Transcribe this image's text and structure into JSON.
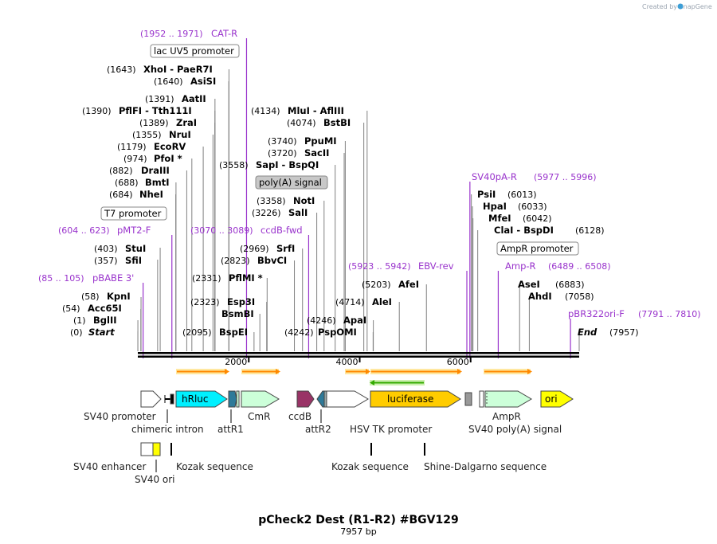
{
  "branding": "Created by SnapGene",
  "title": "pCheck2 Dest (R1-R2)   #BGV129",
  "subtitle": "7957 bp",
  "axis_ticks": [
    {
      "bp": 2000,
      "label": "2000"
    },
    {
      "bp": 4000,
      "label": "4000"
    },
    {
      "bp": 6000,
      "label": "6000"
    }
  ],
  "sites": [
    {
      "pos": "(0)",
      "name": "Start",
      "italic": true,
      "bp": 0
    },
    {
      "pos": "(1)",
      "name": "BglII",
      "bp": 1
    },
    {
      "pos": "(54)",
      "name": "Acc65I",
      "bp": 54
    },
    {
      "pos": "(58)",
      "name": "KpnI",
      "bp": 58
    },
    {
      "pos": "(357)",
      "name": "SfiI",
      "bp": 357
    },
    {
      "pos": "(403)",
      "name": "StuI",
      "bp": 403
    },
    {
      "pos": "(684)",
      "name": "NheI",
      "bp": 684
    },
    {
      "pos": "(688)",
      "name": "BmtI",
      "bp": 688
    },
    {
      "pos": "(882)",
      "name": "DraIII",
      "bp": 882
    },
    {
      "pos": "(974)",
      "name": "PfoI *",
      "bp": 974
    },
    {
      "pos": "(1179)",
      "name": "EcoRV",
      "bp": 1179
    },
    {
      "pos": "(1355)",
      "name": "NruI",
      "bp": 1355
    },
    {
      "pos": "(1389)",
      "name": "ZraI",
      "bp": 1389
    },
    {
      "pos": "(1390)",
      "name": "PflFI  - Tth111I",
      "bp": 1390
    },
    {
      "pos": "(1391)",
      "name": "AatII",
      "bp": 1391
    },
    {
      "pos": "(1640)",
      "name": "AsiSI",
      "bp": 1640
    },
    {
      "pos": "(1643)",
      "name": "XhoI  - PaeR7I",
      "bp": 1643
    },
    {
      "pos": "(2095)",
      "name": "BspEI",
      "bp": 2095
    },
    {
      "pos": "",
      "name": "BsmBI",
      "bp": 2200
    },
    {
      "pos": "(2323)",
      "name": "Esp3I",
      "bp": 2323
    },
    {
      "pos": "(2331)",
      "name": "PflMI *",
      "bp": 2331
    },
    {
      "pos": "(2823)",
      "name": "BbvCI",
      "bp": 2823
    },
    {
      "pos": "(2969)",
      "name": "SrfI",
      "bp": 2969
    },
    {
      "pos": "(3226)",
      "name": "SalI",
      "bp": 3226
    },
    {
      "pos": "(3358)",
      "name": "NotI",
      "bp": 3358
    },
    {
      "pos": "(3558)",
      "name": "SapI  - BspQI",
      "bp": 3558
    },
    {
      "pos": "(3720)",
      "name": "SacII",
      "bp": 3720
    },
    {
      "pos": "(3740)",
      "name": "PpuMI",
      "bp": 3740
    },
    {
      "pos": "(4074)",
      "name": "BstBI",
      "bp": 4074
    },
    {
      "pos": "(4134)",
      "name": "MluI  - AflIII",
      "bp": 4134
    },
    {
      "pos": "(4242)",
      "name": "PspOMI",
      "bp": 4242
    },
    {
      "pos": "(4246)",
      "name": "ApaI",
      "bp": 4246
    },
    {
      "pos": "(4714)",
      "name": "AleI",
      "bp": 4714
    },
    {
      "pos": "(5203)",
      "name": "AfeI",
      "bp": 5203
    },
    {
      "pos": "(6013)",
      "name": "PsiI",
      "bp": 6013
    },
    {
      "pos": "(6033)",
      "name": "HpaI",
      "bp": 6033
    },
    {
      "pos": "(6042)",
      "name": "MfeI",
      "bp": 6042
    },
    {
      "pos": "(6128)",
      "name": "ClaI  - BspDI",
      "bp": 6128
    },
    {
      "pos": "(6883)",
      "name": "AseI",
      "bp": 6883
    },
    {
      "pos": "(7058)",
      "name": "AhdI",
      "bp": 7058
    },
    {
      "pos": "(7957)",
      "name": "End",
      "italic": true,
      "bp": 7957
    }
  ],
  "primers": [
    {
      "range": "(1952 .. 1971)",
      "name": "CAT-R",
      "bp": 1960
    },
    {
      "range": "(604 .. 623)",
      "name": "pMT2-F",
      "bp": 614
    },
    {
      "range": "(85 .. 105)",
      "name": "pBABE 3'",
      "bp": 95
    },
    {
      "range": "(3070 .. 3089)",
      "name": "ccdB-fwd",
      "bp": 3080
    },
    {
      "range": "(5923 .. 5942)",
      "name": "EBV-rev",
      "bp": 5932
    },
    {
      "range": "(5977 .. 5996)",
      "name": "SV40pA-R",
      "bp": 5987
    },
    {
      "range": "(6489 .. 6508)",
      "name": "Amp-R",
      "bp": 6498
    },
    {
      "range": "(7791 .. 7810)",
      "name": "pBR322ori-F",
      "bp": 7800
    }
  ],
  "boxed_labels": [
    "lac UV5 promoter",
    "T7 promoter",
    "poly(A) signal",
    "AmpR promoter"
  ],
  "features": [
    {
      "name": "SV40 promoter",
      "color": "#ffffff"
    },
    {
      "name": "chimeric intron",
      "color": "#000000"
    },
    {
      "name": "hRluc",
      "color": "#00f0ff"
    },
    {
      "name": "attR1",
      "color": "#2e7a99"
    },
    {
      "name": "CmR",
      "color": "#ccffd9"
    },
    {
      "name": "ccdB",
      "color": "#993366"
    },
    {
      "name": "attR2",
      "color": "#2e7a99"
    },
    {
      "name": "HSV TK promoter",
      "color": "#ffffff"
    },
    {
      "name": "luciferase",
      "color": "#ffcc00"
    },
    {
      "name": "SV40 poly(A) signal",
      "color": "#999999"
    },
    {
      "name": "AmpR",
      "color": "#ccffd9"
    },
    {
      "name": "ori",
      "color": "#ffff00"
    },
    {
      "name": "SV40 enhancer",
      "color": "#ffffff"
    },
    {
      "name": "SV40 ori",
      "color": "#ffff00"
    },
    {
      "name": "Kozak sequence",
      "color": "#ffffff"
    },
    {
      "name": "Shine-Dalgarno sequence",
      "color": "#ffffff"
    }
  ],
  "colors": {
    "primer": "#9933cc",
    "backbone": "#000000",
    "orf_arrow": "#ff8800",
    "orf_shadow": "#ffe8a0",
    "reverse_orf": "#33aa00",
    "reverse_shadow": "#ccf0b0",
    "leader": "#808080"
  }
}
